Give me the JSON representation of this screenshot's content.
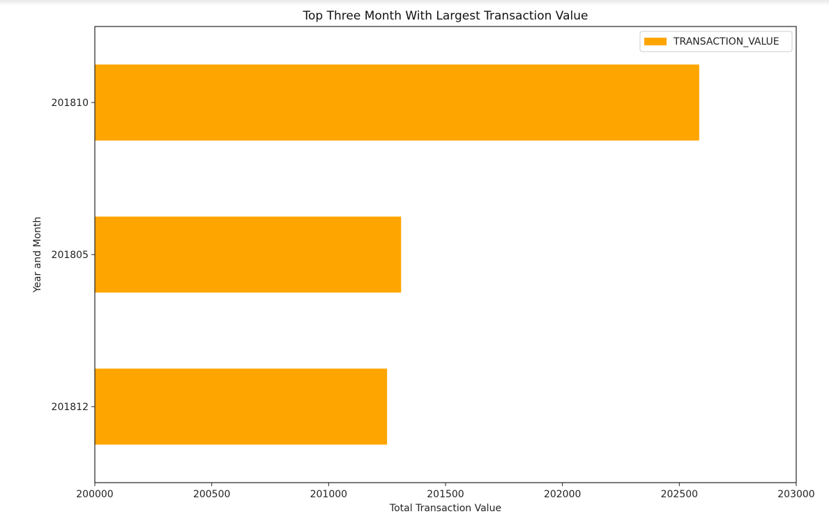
{
  "chart_data": {
    "type": "bar",
    "orientation": "horizontal",
    "title": "Top Three Month With Largest Transaction Value",
    "xlabel": "Total Transaction Value",
    "ylabel": "Year and Month",
    "categories": [
      "201810",
      "201805",
      "201812"
    ],
    "series": [
      {
        "name": "TRANSACTION_VALUE",
        "values": [
          202585,
          201310,
          201250
        ],
        "color": "#ffa500"
      }
    ],
    "xlim": [
      200000,
      203000
    ],
    "xticks": [
      200000,
      200500,
      201000,
      201500,
      202000,
      202500,
      203000
    ],
    "legend": "top-right",
    "grid": false
  }
}
